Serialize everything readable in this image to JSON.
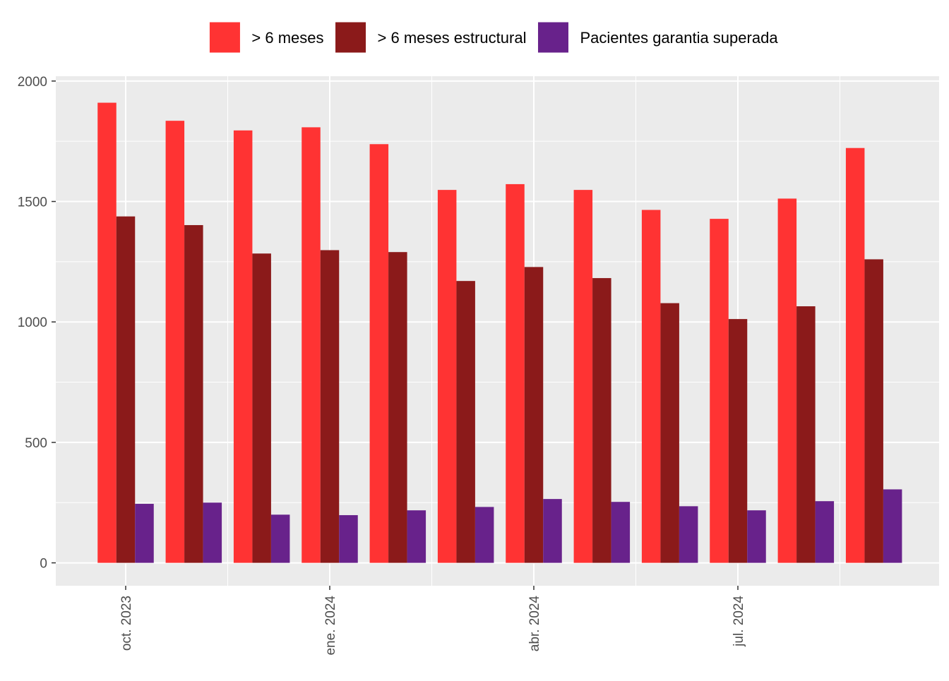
{
  "chart_data": {
    "type": "bar",
    "legend_position": "top",
    "grid": true,
    "ylim": [
      -95,
      2020
    ],
    "y_ticks": [
      0,
      500,
      1000,
      1500,
      2000
    ],
    "y_tick_labels": [
      "0",
      "500",
      "1000",
      "1500",
      "2000"
    ],
    "x_tick_labels": [
      {
        "label": "oct. 2023",
        "month_index": 0
      },
      {
        "label": "ene. 2024",
        "month_index": 3
      },
      {
        "label": "abr. 2024",
        "month_index": 6
      },
      {
        "label": "jul. 2024",
        "month_index": 9
      }
    ],
    "categories": [
      "2023-10",
      "2023-11",
      "2023-12",
      "2024-01",
      "2024-02",
      "2024-03",
      "2024-04",
      "2024-05",
      "2024-06",
      "2024-07",
      "2024-08",
      "2024-09"
    ],
    "series": [
      {
        "name": "> 6 meses",
        "color": "#FF3333",
        "values": [
          1910,
          1835,
          1795,
          1808,
          1738,
          1548,
          1572,
          1548,
          1465,
          1428,
          1512,
          1722
        ]
      },
      {
        "name": "> 6 meses estructural",
        "color": "#8B1A1A",
        "values": [
          1438,
          1402,
          1284,
          1298,
          1290,
          1170,
          1228,
          1182,
          1078,
          1012,
          1065,
          1260
        ]
      },
      {
        "name": "Pacientes garantia superada",
        "color": "#68228B",
        "values": [
          245,
          250,
          200,
          198,
          218,
          232,
          265,
          253,
          235,
          218,
          256,
          305
        ]
      }
    ]
  }
}
